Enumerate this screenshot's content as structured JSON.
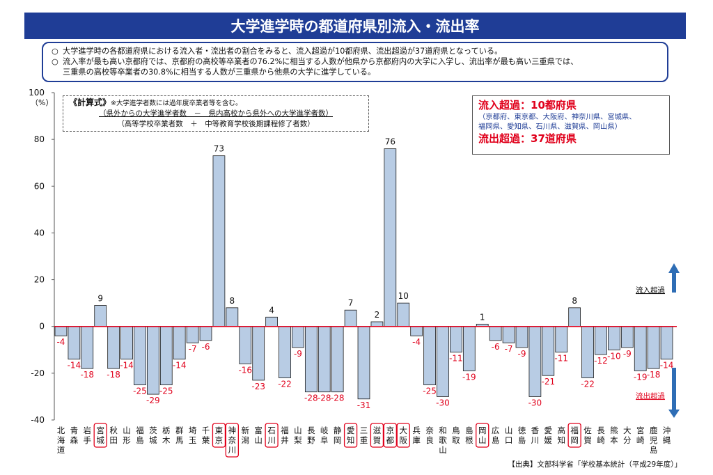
{
  "title": "大学進学時の都道府県別流入・流出率",
  "summary": {
    "bullet": "○",
    "lines": [
      "大学進学時の各都道府県における流入者・流出者の割合をみると、流入超過が10都府県、流出超過が37道府県となっている。",
      "流入率が最も高い京都府では、京都府の高校等卒業者の76.2%に相当する人数が他県から京都府内の大学に入学し、流出率が最も高い三重県では、",
      "三重県の高校等卒業者の30.8%に相当する人数が三重県から他県の大学に進学している。"
    ]
  },
  "formula": {
    "label": "《計算式》",
    "note": "※大学進学者数には過年度卒業者等を含む。",
    "numerator": "（県外からの大学進学者数　－　県内高校から県外への大学進学者数）",
    "denominator": "（高等学校卒業者数　＋　中等教育学校後期課程修了者数）"
  },
  "callout": {
    "inflow_title": "流入超過：10都府県",
    "inflow_list_1": "（京都府、東京都、大阪府、神奈川県、宮城県、",
    "inflow_list_2": "福岡県、愛知県、石川県、滋賀県、岡山県）",
    "outflow_title": "流出超過：37道府県"
  },
  "source": "【出典】文部科学省「学校基本統計（平成29年度）」",
  "chart_data": {
    "type": "bar",
    "title": "大学進学時の都道府県別流入・流出率",
    "ylabel": "（%）",
    "ylim": [
      -40,
      100
    ],
    "yticks": [
      -40,
      -20,
      0,
      20,
      40,
      60,
      80,
      100
    ],
    "categories": [
      "北海道",
      "青森",
      "岩手",
      "宮城",
      "秋田",
      "山形",
      "福島",
      "茨城",
      "栃木",
      "群馬",
      "埼玉",
      "千葉",
      "東京",
      "神奈川",
      "新潟",
      "富山",
      "石川",
      "福井",
      "山梨",
      "長野",
      "岐阜",
      "静岡",
      "愛知",
      "三重",
      "滋賀",
      "京都",
      "大阪",
      "兵庫",
      "奈良",
      "和歌山",
      "鳥取",
      "島根",
      "岡山",
      "広島",
      "山口",
      "徳島",
      "香川",
      "愛媛",
      "高知",
      "福岡",
      "佐賀",
      "長崎",
      "熊本",
      "大分",
      "宮崎",
      "鹿児島",
      "沖縄"
    ],
    "values": [
      -4,
      -14,
      -18,
      9,
      -18,
      -14,
      -25,
      -29,
      -25,
      -14,
      -7,
      -6,
      73,
      8,
      -16,
      -23,
      4,
      -22,
      -9,
      -28,
      -28,
      -28,
      7,
      -31,
      2,
      76,
      10,
      -4,
      -25,
      -30,
      -11,
      -19,
      1,
      -6,
      -7,
      -9,
      -30,
      -21,
      -11,
      8,
      -22,
      -12,
      -10,
      -9,
      -19,
      -18,
      -14
    ],
    "labels": [
      "-4",
      "-14",
      "-18",
      "9",
      "-18",
      "-14",
      "-25",
      "-29",
      "-25",
      "-14",
      "-7",
      "-6",
      "73",
      "8",
      "-16",
      "-23",
      "4",
      "-22",
      "-9",
      "-28",
      "-28",
      "-28",
      "7",
      "-31",
      "2",
      "76",
      "10",
      "-4",
      "-25",
      "-30",
      "-11",
      "-19",
      "1",
      "-6",
      "-7",
      "-9",
      "-30",
      "-21",
      "-11",
      "8",
      "-22",
      "-12",
      "-10",
      "-9",
      "-19",
      "-18",
      "-14"
    ],
    "highlighted": [
      "宮城",
      "東京",
      "神奈川",
      "石川",
      "愛知",
      "滋賀",
      "京都",
      "大阪",
      "岡山",
      "福岡"
    ],
    "inflow_arrow_label": "流入超過",
    "outflow_arrow_label": "流出超過",
    "bar_color": "#b8cce4",
    "bar_stroke": "#1a1a1a",
    "baseline_color": "#e0001b",
    "positive_label_color": "#111111",
    "negative_label_color": "#e0001b",
    "arrow_color": "#2e6db5"
  }
}
